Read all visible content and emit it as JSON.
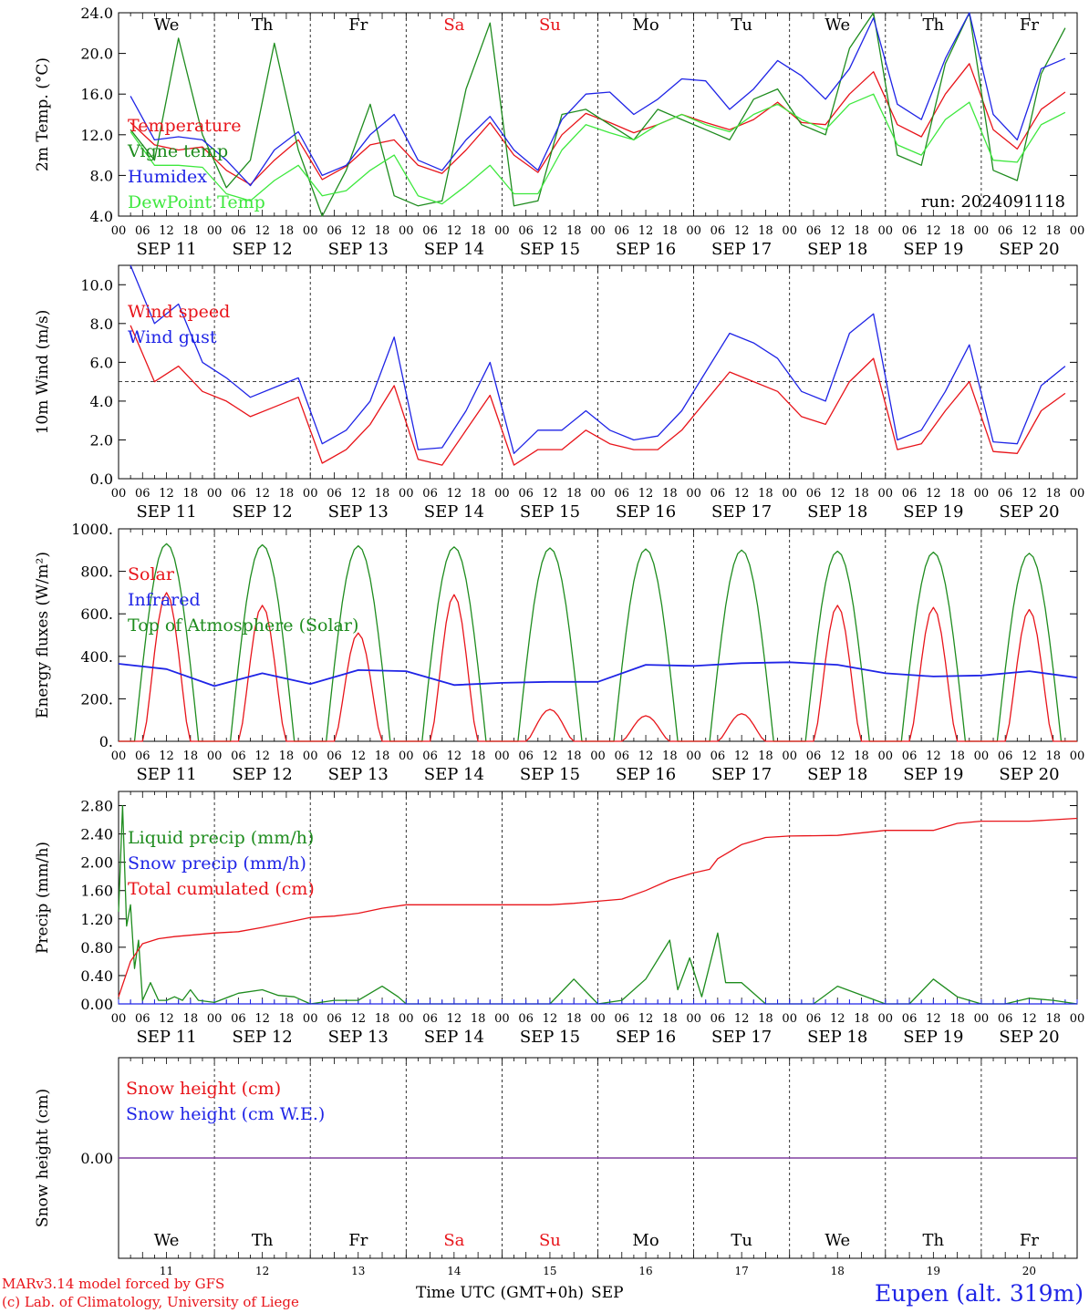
{
  "station": "Eupen (alt. 319m)",
  "credit": [
    "MARv3.14 model forced by GFS",
    "(c) Lab. of Climatology, University of Liege"
  ],
  "time_axis": {
    "label": "Time UTC (GMT+0h)",
    "month": "SEP"
  },
  "days": [
    {
      "dow": "We",
      "date": "SEP 11",
      "num": "11",
      "weekend": false
    },
    {
      "dow": "Th",
      "date": "SEP 12",
      "num": "12",
      "weekend": false
    },
    {
      "dow": "Fr",
      "date": "SEP 13",
      "num": "13",
      "weekend": false
    },
    {
      "dow": "Sa",
      "date": "SEP 14",
      "num": "14",
      "weekend": true
    },
    {
      "dow": "Su",
      "date": "SEP 15",
      "num": "15",
      "weekend": true
    },
    {
      "dow": "Mo",
      "date": "SEP 16",
      "num": "16",
      "weekend": false
    },
    {
      "dow": "Tu",
      "date": "SEP 17",
      "num": "17",
      "weekend": false
    },
    {
      "dow": "We",
      "date": "SEP 18",
      "num": "18",
      "weekend": false
    },
    {
      "dow": "Th",
      "date": "SEP 19",
      "num": "19",
      "weekend": false
    },
    {
      "dow": "Fr",
      "date": "SEP 20",
      "num": "20",
      "weekend": false
    }
  ],
  "hour_ticks": [
    "00",
    "06",
    "12",
    "18"
  ],
  "final_tick": "00",
  "colors": {
    "red": "#e8141a",
    "green": "#1e8c1e",
    "blue": "#1f24e6",
    "light_green": "#3ee83e",
    "purple": "#8040a0"
  },
  "chart_data": [
    {
      "type": "line",
      "ylabel": "2m Temp. (°C)",
      "ylim": [
        4,
        24
      ],
      "yticks": [
        "4.0",
        "8.0",
        "12.0",
        "16.0",
        "20.0",
        "24.0"
      ],
      "show_dow": true,
      "annotation": "run: 2024091118",
      "x_hours": [
        0,
        6,
        12,
        18,
        24,
        30,
        36,
        42,
        48,
        54,
        60,
        66,
        72,
        78,
        84,
        90,
        96,
        102,
        108,
        114,
        120,
        126,
        132,
        138,
        144,
        150,
        156,
        162,
        168,
        174,
        180,
        186,
        192,
        198,
        204,
        210,
        216,
        222,
        228,
        234
      ],
      "series": [
        {
          "name": "Temperature",
          "color": "red",
          "values": [
            13.2,
            11.0,
            10.5,
            10.8,
            8.5,
            7.1,
            9.5,
            11.5,
            7.6,
            8.9,
            11.0,
            11.5,
            9.0,
            8.2,
            10.5,
            13.2,
            10.0,
            8.3,
            12.0,
            14.1,
            13.2,
            12.2,
            13.0,
            14.0,
            13.2,
            12.5,
            13.5,
            15.2,
            13.2,
            13.0,
            16.0,
            18.2,
            13.0,
            11.8,
            16.0,
            19.0,
            12.5,
            10.6,
            14.5,
            16.2
          ]
        },
        {
          "name": "Vigne temp",
          "color": "green",
          "values": [
            12.5,
            9.5,
            21.5,
            12.0,
            6.8,
            9.5,
            21.0,
            10.5,
            4.0,
            8.5,
            15.0,
            6.0,
            5.0,
            5.5,
            16.5,
            23.0,
            5.0,
            5.5,
            14.0,
            14.5,
            13.0,
            11.5,
            14.5,
            13.5,
            12.5,
            11.5,
            15.5,
            16.5,
            13.0,
            12.0,
            20.5,
            24.0,
            10.0,
            9.0,
            19.0,
            24.0,
            8.5,
            7.5,
            18.0,
            22.5
          ]
        },
        {
          "name": "Humidex",
          "color": "blue",
          "values": [
            15.8,
            11.5,
            11.8,
            11.5,
            9.5,
            7.0,
            10.5,
            12.3,
            8.0,
            9.0,
            12.0,
            14.0,
            9.5,
            8.5,
            11.5,
            13.8,
            10.5,
            8.5,
            13.5,
            16.0,
            16.2,
            14.0,
            15.5,
            17.5,
            17.3,
            14.5,
            16.5,
            19.3,
            17.8,
            15.5,
            18.5,
            23.5,
            15.0,
            13.5,
            19.5,
            24.0,
            14.0,
            11.5,
            18.5,
            19.5
          ]
        },
        {
          "name": "DewPoint Temp",
          "color": "light_green",
          "values": [
            12.3,
            9.0,
            9.0,
            8.8,
            6.2,
            5.5,
            7.5,
            9.0,
            6.0,
            6.5,
            8.5,
            10.0,
            6.0,
            5.2,
            7.0,
            9.0,
            6.2,
            6.2,
            10.5,
            13.0,
            12.2,
            11.5,
            13.0,
            14.0,
            13.0,
            12.3,
            14.0,
            15.0,
            13.5,
            12.5,
            15.0,
            16.0,
            11.0,
            10.0,
            13.5,
            15.2,
            9.5,
            9.3,
            13.0,
            14.2
          ]
        }
      ]
    },
    {
      "type": "line",
      "ylabel": "10m Wind (m/s)",
      "ylim": [
        0,
        11
      ],
      "yticks": [
        "0.0",
        "2.0",
        "4.0",
        "6.0",
        "8.0",
        "10.0"
      ],
      "reference_line": 5.0,
      "show_dow": false,
      "x_hours": [
        0,
        6,
        12,
        18,
        24,
        30,
        36,
        42,
        48,
        54,
        60,
        66,
        72,
        78,
        84,
        90,
        96,
        102,
        108,
        114,
        120,
        126,
        132,
        138,
        144,
        150,
        156,
        162,
        168,
        174,
        180,
        186,
        192,
        198,
        204,
        210,
        216,
        222,
        228,
        234
      ],
      "series": [
        {
          "name": "Wind speed",
          "color": "red",
          "values": [
            7.9,
            5.0,
            5.8,
            4.5,
            4.0,
            3.2,
            3.7,
            4.2,
            0.8,
            1.5,
            2.8,
            4.8,
            1.0,
            0.7,
            2.5,
            4.3,
            0.7,
            1.5,
            1.5,
            2.5,
            1.8,
            1.5,
            1.5,
            2.5,
            4.0,
            5.5,
            5.0,
            4.5,
            3.2,
            2.8,
            5.0,
            6.2,
            1.5,
            1.8,
            3.5,
            5.0,
            1.4,
            1.3,
            3.5,
            4.4
          ]
        },
        {
          "name": "Wind gust",
          "color": "blue",
          "values": [
            11.0,
            8.0,
            9.0,
            6.0,
            5.2,
            4.2,
            4.7,
            5.2,
            1.8,
            2.5,
            4.0,
            7.3,
            1.5,
            1.6,
            3.5,
            6.0,
            1.3,
            2.5,
            2.5,
            3.5,
            2.5,
            2.0,
            2.2,
            3.5,
            5.5,
            7.5,
            7.0,
            6.2,
            4.5,
            4.0,
            7.5,
            8.5,
            2.0,
            2.5,
            4.5,
            6.9,
            1.9,
            1.8,
            4.8,
            5.8
          ]
        }
      ]
    },
    {
      "type": "line",
      "ylabel": "Energy fluxes (W/m²)",
      "ylim": [
        0,
        1000
      ],
      "yticks": [
        "0.",
        "200.",
        "400.",
        "600.",
        "800.",
        "1000."
      ],
      "show_dow": false,
      "daily_peaks": {
        "Top of Atmosphere (Solar)": [
          930,
          925,
          920,
          915,
          910,
          905,
          900,
          895,
          890,
          885
        ],
        "Solar": [
          700,
          640,
          510,
          690,
          150,
          120,
          130,
          640,
          630,
          620
        ]
      },
      "series_meta": [
        {
          "name": "Solar",
          "color": "red"
        },
        {
          "name": "Infrared",
          "color": "blue"
        },
        {
          "name": "Top of Atmosphere (Solar)",
          "color": "green"
        }
      ],
      "infrared": {
        "x_hours": [
          0,
          12,
          24,
          36,
          48,
          60,
          72,
          84,
          96,
          108,
          120,
          132,
          144,
          156,
          168,
          180,
          192,
          204,
          216,
          228,
          240
        ],
        "values": [
          365,
          340,
          260,
          320,
          270,
          335,
          330,
          265,
          275,
          280,
          280,
          360,
          355,
          368,
          372,
          360,
          320,
          305,
          310,
          330,
          300
        ]
      }
    },
    {
      "type": "line",
      "ylabel": "Precip (mm/h)",
      "ylim": [
        0,
        3.0
      ],
      "yticks": [
        "0.00",
        "0.40",
        "0.80",
        "1.20",
        "1.60",
        "2.00",
        "2.40",
        "2.80"
      ],
      "show_dow": false,
      "series": [
        {
          "name": "Liquid precip (mm/h)",
          "color": "green",
          "x_hours": [
            0,
            1,
            2,
            3,
            4,
            5,
            6,
            8,
            10,
            12,
            14,
            16,
            18,
            20,
            24,
            30,
            36,
            40,
            44,
            48,
            54,
            60,
            66,
            70,
            72,
            78,
            84,
            96,
            108,
            114,
            120,
            126,
            132,
            138,
            140,
            143,
            146,
            150,
            152,
            156,
            160,
            162,
            168,
            174,
            180,
            192,
            198,
            204,
            210,
            216,
            222,
            228,
            234,
            240
          ],
          "values": [
            1.3,
            2.8,
            1.1,
            1.4,
            0.5,
            0.9,
            0.05,
            0.3,
            0.05,
            0.05,
            0.1,
            0.05,
            0.2,
            0.05,
            0.02,
            0.15,
            0.2,
            0.12,
            0.1,
            0.0,
            0.05,
            0.05,
            0.25,
            0.1,
            0.0,
            0.0,
            0.0,
            0.0,
            0.0,
            0.35,
            0.0,
            0.05,
            0.35,
            0.9,
            0.2,
            0.65,
            0.1,
            1.0,
            0.3,
            0.3,
            0.1,
            0.0,
            0.0,
            0.0,
            0.25,
            0.0,
            0.0,
            0.35,
            0.1,
            0.0,
            0.0,
            0.08,
            0.05,
            0.0
          ]
        },
        {
          "name": "Snow precip (mm/h)",
          "color": "blue",
          "x_hours": [
            0,
            240
          ],
          "values": [
            0,
            0
          ]
        },
        {
          "name": "Total cumulated (cm)",
          "color": "red",
          "x_hours": [
            0,
            3,
            6,
            10,
            14,
            24,
            30,
            36,
            42,
            48,
            54,
            60,
            66,
            72,
            84,
            96,
            108,
            114,
            120,
            126,
            132,
            138,
            144,
            148,
            150,
            156,
            162,
            168,
            180,
            192,
            204,
            210,
            216,
            228,
            240
          ],
          "values": [
            0.1,
            0.6,
            0.85,
            0.92,
            0.95,
            1.0,
            1.02,
            1.08,
            1.15,
            1.22,
            1.24,
            1.28,
            1.35,
            1.4,
            1.4,
            1.4,
            1.4,
            1.42,
            1.45,
            1.48,
            1.6,
            1.75,
            1.85,
            1.9,
            2.05,
            2.25,
            2.35,
            2.37,
            2.38,
            2.45,
            2.45,
            2.55,
            2.58,
            2.58,
            2.62
          ]
        }
      ]
    },
    {
      "type": "line",
      "ylabel": "Snow height (cm)",
      "ylim": [
        -1,
        1
      ],
      "yticks": [
        "0.00"
      ],
      "show_dow": true,
      "series": [
        {
          "name": "Snow height (cm)",
          "color": "red",
          "x_hours": [
            0,
            240
          ],
          "values": [
            0,
            0
          ]
        },
        {
          "name": "Snow height (cm W.E.)",
          "color": "blue",
          "x_hours": [
            0,
            240
          ],
          "values": [
            0,
            0
          ]
        }
      ]
    }
  ]
}
